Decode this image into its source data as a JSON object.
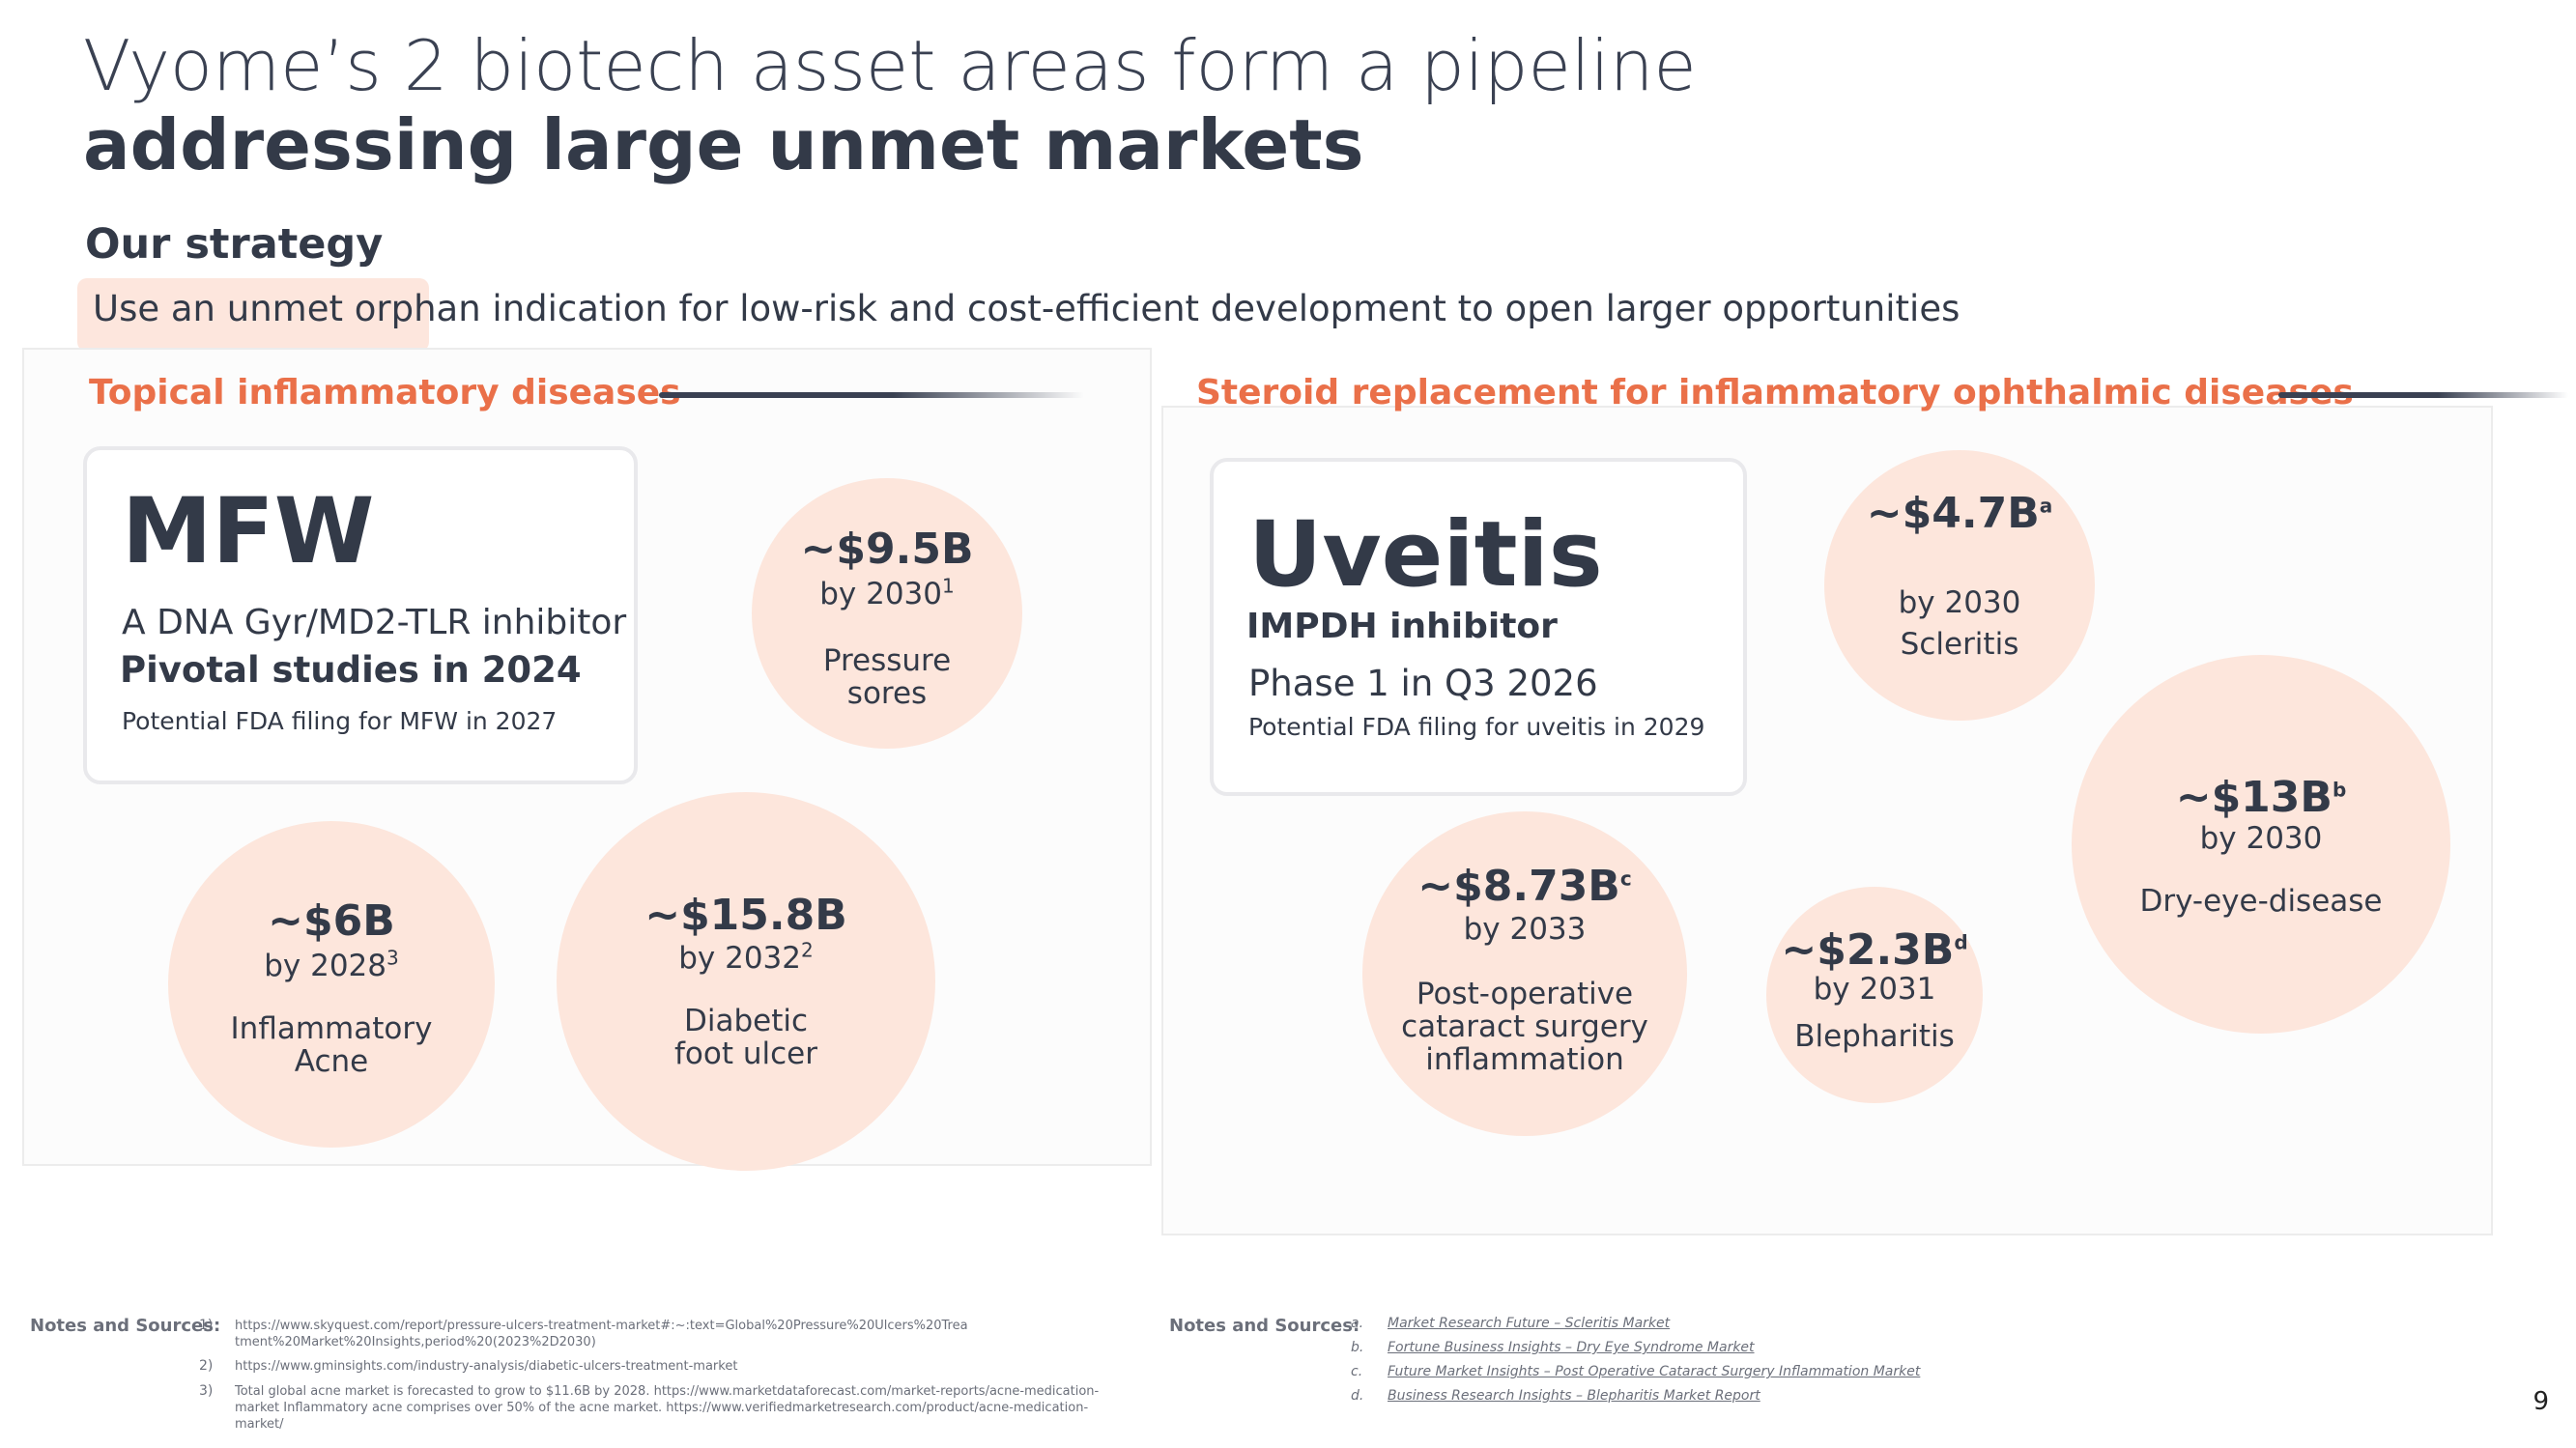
{
  "title": {
    "line1": "Vyome’s 2 biotech asset areas form a pipeline",
    "line2": "addressing large unmet markets"
  },
  "strategy": {
    "heading": "Our strategy",
    "text": "Use an unmet orphan indication for low-risk and cost-efficient development to open larger opportunities"
  },
  "left_section": {
    "title": "Topical inflammatory diseases",
    "card": {
      "name": "MFW",
      "line1": "A DNA Gyr/MD2-TLR inhibitor",
      "line2": "Pivotal studies in 2024",
      "line3": "Potential FDA filing for MFW in 2027"
    },
    "bubbles": [
      {
        "amount": "~$9.5B",
        "year": "by 2030",
        "sup": "1",
        "label": "Pressure sores"
      },
      {
        "amount": "~$6B",
        "year": "by 2028",
        "sup": "3",
        "label": "Inflammatory Acne"
      },
      {
        "amount": "~$15.8B",
        "year": "by 2032",
        "sup": "2",
        "label": "Diabetic foot ulcer"
      }
    ]
  },
  "right_section": {
    "title": "Steroid replacement for inflammatory ophthalmic diseases",
    "card": {
      "name": "Uveitis",
      "line1": "IMPDH inhibitor",
      "line2": "Phase 1 in Q3 2026",
      "line3": "Potential FDA filing for uveitis in 2029"
    },
    "bubbles": [
      {
        "amount": "~$4.7B",
        "sup": "a",
        "year": "by 2030",
        "label": "Scleritis"
      },
      {
        "amount": "~$13B",
        "sup": "b",
        "year": "by 2030",
        "label": "Dry-eye-disease"
      },
      {
        "amount": "~$8.73B",
        "sup": "c",
        "year": "by 2033",
        "label": "Post-operative cataract surgery inflammation"
      },
      {
        "amount": "~$2.3B",
        "sup": "d",
        "year": "by 2031",
        "label": "Blepharitis"
      }
    ]
  },
  "notes_left": {
    "heading": "Notes and Sources:",
    "items": [
      {
        "marker": "1)",
        "text": "https://www.skyquest.com/report/pressure-ulcers-treatment-market#:~:text=Global%20Pressure%20Ulcers%20Treatment%20Market%20Insights,period%20(2023%2D2030)"
      },
      {
        "marker": "2)",
        "text": "https://www.gminsights.com/industry-analysis/diabetic-ulcers-treatment-market"
      },
      {
        "marker": "3)",
        "text": "Total global acne market is forecasted to grow to $11.6B by 2028. https://www.marketdataforecast.com/market-reports/acne-medication-market Inflammatory acne comprises over 50% of the acne market. https://www.verifiedmarketresearch.com/product/acne-medication-market/"
      }
    ]
  },
  "notes_right": {
    "heading": "Notes and Sources:",
    "items": [
      {
        "marker": "a.",
        "text": "Market Research Future – Scleritis Market"
      },
      {
        "marker": "b.",
        "text": "Fortune Business Insights – Dry Eye Syndrome Market"
      },
      {
        "marker": "c.",
        "text": "Future Market Insights – Post Operative Cataract Surgery Inflammation Market"
      },
      {
        "marker": "d.",
        "text": "Business Research Insights – Blepharitis Market Report"
      }
    ]
  },
  "page_number": "9",
  "colors": {
    "accent": "#ea7049",
    "bubble": "#fde6dc",
    "text": "#333a48"
  }
}
